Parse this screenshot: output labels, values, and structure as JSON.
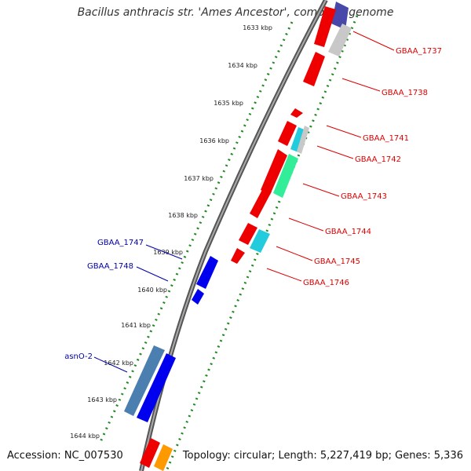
{
  "title": "Bacillus anthracis str. 'Ames Ancestor', complete genome",
  "footer": {
    "accession": "Accession: NC_007530",
    "summary": "Topology: circular; Length: 5,227,419 bp; Genes: 5,336"
  },
  "ticks": [
    {
      "label": "1633 kbp"
    },
    {
      "label": "1634 kbp"
    },
    {
      "label": "1635 kbp"
    },
    {
      "label": "1636 kbp"
    },
    {
      "label": "1637 kbp"
    },
    {
      "label": "1638 kbp"
    },
    {
      "label": "1639 kbp"
    },
    {
      "label": "1640 kbp"
    },
    {
      "label": "1641 kbp"
    },
    {
      "label": "1642 kbp"
    },
    {
      "label": "1643 kbp"
    },
    {
      "label": "1644 kbp"
    }
  ],
  "gene_labels": [
    {
      "name": "GBAA_1737",
      "strand": "plus"
    },
    {
      "name": "GBAA_1738",
      "strand": "plus"
    },
    {
      "name": "GBAA_1741",
      "strand": "plus"
    },
    {
      "name": "GBAA_1742",
      "strand": "plus"
    },
    {
      "name": "GBAA_1743",
      "strand": "plus"
    },
    {
      "name": "GBAA_1744",
      "strand": "plus"
    },
    {
      "name": "GBAA_1745",
      "strand": "plus"
    },
    {
      "name": "GBAA_1746",
      "strand": "plus"
    },
    {
      "name": "GBAA_1747",
      "strand": "minus"
    },
    {
      "name": "GBAA_1748",
      "strand": "minus"
    },
    {
      "name": "asnO-2",
      "strand": "minus"
    }
  ],
  "colors": {
    "plus_label": "#dd0000",
    "minus_label": "#0000aa",
    "red_gene": "#ee0000",
    "blue_gene": "#0000ee",
    "steel_gene": "#4a7fb0",
    "cyan_gene": "#22ccdd",
    "green_gene": "#33ee99",
    "grey_gene": "#c8c8c8",
    "orange_gene": "#ff9900",
    "ticks": "#228822",
    "backbone": "#777777"
  }
}
